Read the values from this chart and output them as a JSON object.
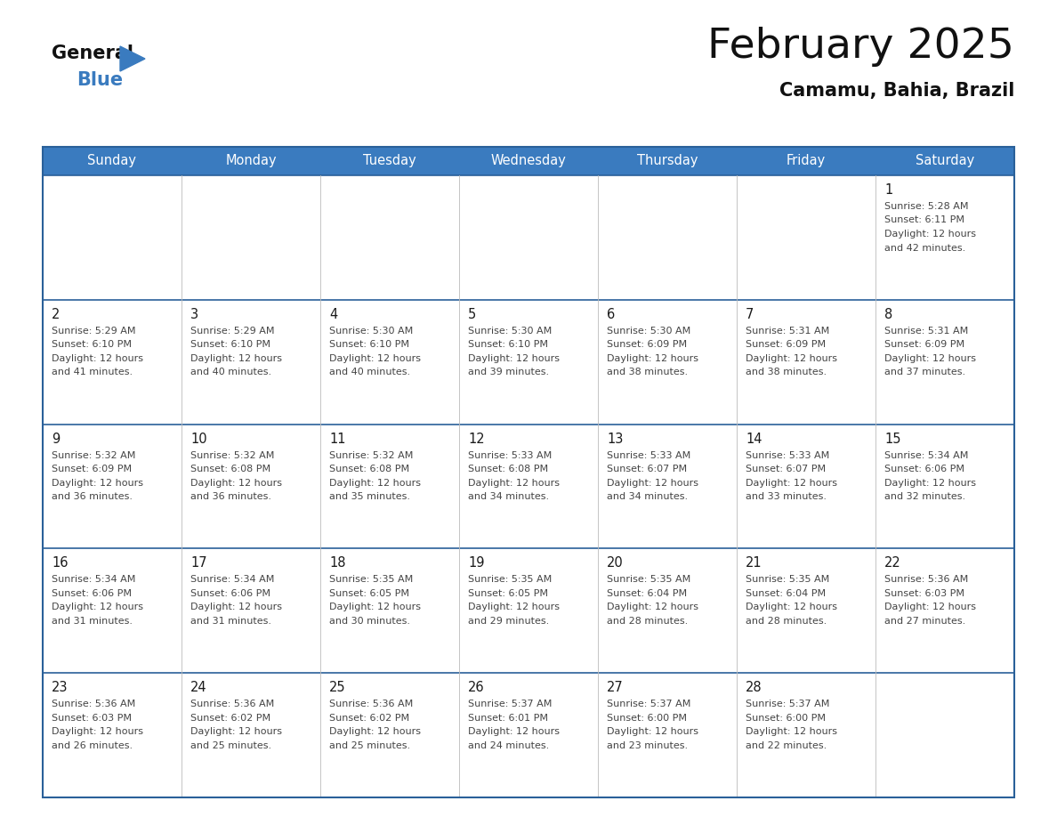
{
  "title": "February 2025",
  "subtitle": "Camamu, Bahia, Brazil",
  "header_color": "#3a7bbf",
  "header_text_color": "#ffffff",
  "border_color": "#2a6099",
  "cell_line_color": "#bbbbbb",
  "day_number_color": "#1a1a1a",
  "info_text_color": "#444444",
  "weekdays": [
    "Sunday",
    "Monday",
    "Tuesday",
    "Wednesday",
    "Thursday",
    "Friday",
    "Saturday"
  ],
  "days": [
    {
      "day": 1,
      "col": 6,
      "row": 0,
      "sunrise": "5:28 AM",
      "sunset": "6:11 PM",
      "dl_mins": "42"
    },
    {
      "day": 2,
      "col": 0,
      "row": 1,
      "sunrise": "5:29 AM",
      "sunset": "6:10 PM",
      "dl_mins": "41"
    },
    {
      "day": 3,
      "col": 1,
      "row": 1,
      "sunrise": "5:29 AM",
      "sunset": "6:10 PM",
      "dl_mins": "40"
    },
    {
      "day": 4,
      "col": 2,
      "row": 1,
      "sunrise": "5:30 AM",
      "sunset": "6:10 PM",
      "dl_mins": "40"
    },
    {
      "day": 5,
      "col": 3,
      "row": 1,
      "sunrise": "5:30 AM",
      "sunset": "6:10 PM",
      "dl_mins": "39"
    },
    {
      "day": 6,
      "col": 4,
      "row": 1,
      "sunrise": "5:30 AM",
      "sunset": "6:09 PM",
      "dl_mins": "38"
    },
    {
      "day": 7,
      "col": 5,
      "row": 1,
      "sunrise": "5:31 AM",
      "sunset": "6:09 PM",
      "dl_mins": "38"
    },
    {
      "day": 8,
      "col": 6,
      "row": 1,
      "sunrise": "5:31 AM",
      "sunset": "6:09 PM",
      "dl_mins": "37"
    },
    {
      "day": 9,
      "col": 0,
      "row": 2,
      "sunrise": "5:32 AM",
      "sunset": "6:09 PM",
      "dl_mins": "36"
    },
    {
      "day": 10,
      "col": 1,
      "row": 2,
      "sunrise": "5:32 AM",
      "sunset": "6:08 PM",
      "dl_mins": "36"
    },
    {
      "day": 11,
      "col": 2,
      "row": 2,
      "sunrise": "5:32 AM",
      "sunset": "6:08 PM",
      "dl_mins": "35"
    },
    {
      "day": 12,
      "col": 3,
      "row": 2,
      "sunrise": "5:33 AM",
      "sunset": "6:08 PM",
      "dl_mins": "34"
    },
    {
      "day": 13,
      "col": 4,
      "row": 2,
      "sunrise": "5:33 AM",
      "sunset": "6:07 PM",
      "dl_mins": "34"
    },
    {
      "day": 14,
      "col": 5,
      "row": 2,
      "sunrise": "5:33 AM",
      "sunset": "6:07 PM",
      "dl_mins": "33"
    },
    {
      "day": 15,
      "col": 6,
      "row": 2,
      "sunrise": "5:34 AM",
      "sunset": "6:06 PM",
      "dl_mins": "32"
    },
    {
      "day": 16,
      "col": 0,
      "row": 3,
      "sunrise": "5:34 AM",
      "sunset": "6:06 PM",
      "dl_mins": "31"
    },
    {
      "day": 17,
      "col": 1,
      "row": 3,
      "sunrise": "5:34 AM",
      "sunset": "6:06 PM",
      "dl_mins": "31"
    },
    {
      "day": 18,
      "col": 2,
      "row": 3,
      "sunrise": "5:35 AM",
      "sunset": "6:05 PM",
      "dl_mins": "30"
    },
    {
      "day": 19,
      "col": 3,
      "row": 3,
      "sunrise": "5:35 AM",
      "sunset": "6:05 PM",
      "dl_mins": "29"
    },
    {
      "day": 20,
      "col": 4,
      "row": 3,
      "sunrise": "5:35 AM",
      "sunset": "6:04 PM",
      "dl_mins": "28"
    },
    {
      "day": 21,
      "col": 5,
      "row": 3,
      "sunrise": "5:35 AM",
      "sunset": "6:04 PM",
      "dl_mins": "28"
    },
    {
      "day": 22,
      "col": 6,
      "row": 3,
      "sunrise": "5:36 AM",
      "sunset": "6:03 PM",
      "dl_mins": "27"
    },
    {
      "day": 23,
      "col": 0,
      "row": 4,
      "sunrise": "5:36 AM",
      "sunset": "6:03 PM",
      "dl_mins": "26"
    },
    {
      "day": 24,
      "col": 1,
      "row": 4,
      "sunrise": "5:36 AM",
      "sunset": "6:02 PM",
      "dl_mins": "25"
    },
    {
      "day": 25,
      "col": 2,
      "row": 4,
      "sunrise": "5:36 AM",
      "sunset": "6:02 PM",
      "dl_mins": "25"
    },
    {
      "day": 26,
      "col": 3,
      "row": 4,
      "sunrise": "5:37 AM",
      "sunset": "6:01 PM",
      "dl_mins": "24"
    },
    {
      "day": 27,
      "col": 4,
      "row": 4,
      "sunrise": "5:37 AM",
      "sunset": "6:00 PM",
      "dl_mins": "23"
    },
    {
      "day": 28,
      "col": 5,
      "row": 4,
      "sunrise": "5:37 AM",
      "sunset": "6:00 PM",
      "dl_mins": "22"
    }
  ],
  "num_rows": 5,
  "num_cols": 7,
  "fig_width": 11.88,
  "fig_height": 9.18,
  "dpi": 100
}
